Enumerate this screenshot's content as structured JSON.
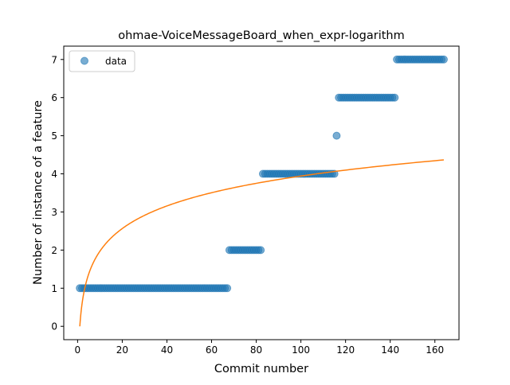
{
  "chart_data": {
    "type": "scatter",
    "title": "ohmae-VoiceMessageBoard_when_expr-logarithm",
    "xlabel": "Commit number",
    "ylabel": "Number of instance of a feature",
    "xlim": [
      -6.2,
      170.8
    ],
    "ylim": [
      -0.35,
      7.35
    ],
    "xticks": [
      0,
      20,
      40,
      60,
      80,
      100,
      120,
      140,
      160
    ],
    "yticks": [
      0,
      1,
      2,
      3,
      4,
      5,
      6,
      7
    ],
    "legend": {
      "placement": "top-left",
      "entries": [
        "data"
      ]
    },
    "colors": {
      "data": "#1f77b4",
      "fit": "#ff7f0e"
    },
    "series": [
      {
        "name": "data",
        "kind": "points",
        "segments": [
          {
            "x_from": 1,
            "x_to": 67,
            "y": 1
          },
          {
            "x_from": 68,
            "x_to": 82,
            "y": 2
          },
          {
            "x_from": 83,
            "x_to": 115,
            "y": 4
          },
          {
            "x_from": 116,
            "x_to": 116,
            "y": 5
          },
          {
            "x_from": 117,
            "x_to": 142,
            "y": 6
          },
          {
            "x_from": 143,
            "x_to": 164,
            "y": 7
          }
        ]
      },
      {
        "kind": "line",
        "model": "y = a * ln(x)",
        "a": 0.856,
        "x_from": 1,
        "x_to": 164
      }
    ]
  }
}
